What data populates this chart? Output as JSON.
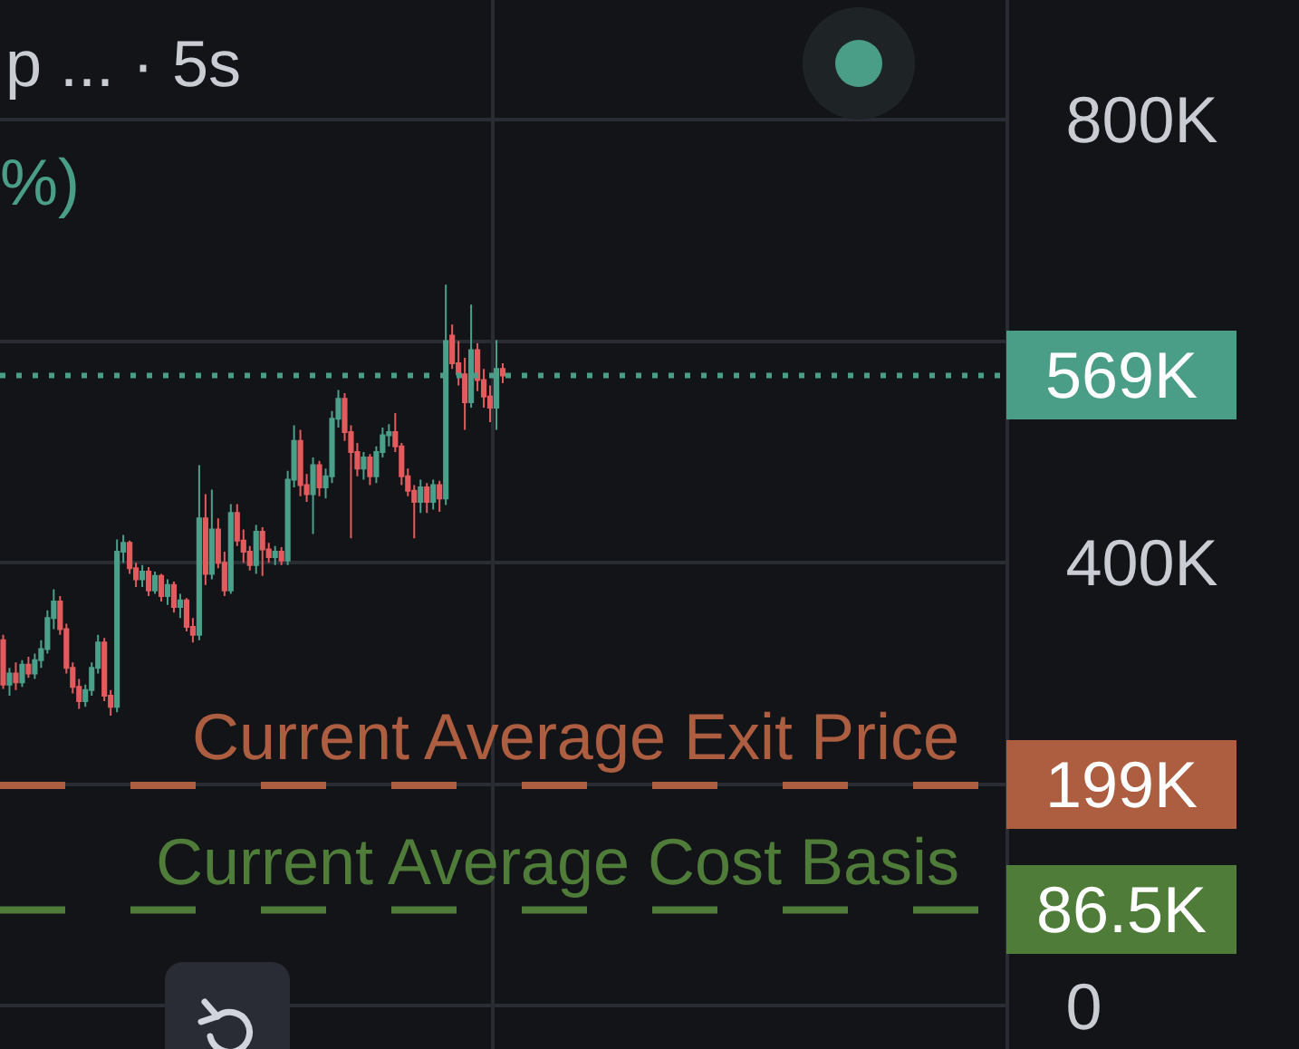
{
  "chart_data": {
    "type": "candlestick",
    "title": "p ... · 5s",
    "subtitle": "%)",
    "categories": [
      null,
      null,
      null,
      null,
      null,
      null,
      null,
      null,
      null,
      null,
      null,
      null,
      null,
      null,
      null,
      null,
      null,
      null,
      null,
      null,
      null,
      null,
      null,
      null,
      null,
      null,
      null,
      null,
      null,
      null,
      null,
      null,
      null,
      null,
      null,
      null,
      null,
      null,
      null,
      null,
      null,
      null,
      null,
      null,
      null,
      null,
      null,
      null,
      null,
      null,
      null,
      null,
      null,
      null,
      null,
      null,
      null,
      null,
      null,
      null,
      null,
      null,
      null,
      null,
      null,
      null,
      null,
      null,
      null,
      null,
      null,
      null,
      null,
      null,
      null,
      null,
      null,
      null,
      null,
      null,
      null,
      null,
      null,
      null,
      null,
      null,
      null,
      null,
      null,
      null,
      null,
      null,
      null,
      null,
      null,
      null,
      null,
      null,
      null,
      null,
      null,
      null,
      null,
      null,
      null,
      null,
      null,
      null,
      null,
      null,
      null,
      null,
      null,
      null,
      null,
      null,
      null,
      null,
      null,
      null,
      null,
      null,
      null,
      null,
      null,
      null,
      null,
      null,
      null,
      null,
      null,
      null,
      null,
      null,
      null,
      null,
      null,
      null,
      null,
      null,
      null,
      null,
      null,
      null,
      null,
      null,
      null,
      null,
      null,
      null,
      null,
      null,
      null,
      null,
      null,
      null,
      null,
      null,
      null
    ],
    "ohlc": [
      [
        330,
        335,
        286,
        290
      ],
      [
        290,
        305,
        280,
        300
      ],
      [
        300,
        310,
        285,
        292
      ],
      [
        292,
        312,
        288,
        308
      ],
      [
        308,
        315,
        296,
        300
      ],
      [
        300,
        318,
        295,
        312
      ],
      [
        312,
        330,
        305,
        322
      ],
      [
        322,
        357,
        318,
        350
      ],
      [
        350,
        376,
        340,
        365
      ],
      [
        365,
        370,
        335,
        340
      ],
      [
        340,
        345,
        300,
        305
      ],
      [
        305,
        310,
        282,
        288
      ],
      [
        288,
        295,
        268,
        275
      ],
      [
        275,
        290,
        270,
        285
      ],
      [
        285,
        310,
        280,
        305
      ],
      [
        305,
        335,
        300,
        328
      ],
      [
        328,
        332,
        275,
        280
      ],
      [
        280,
        285,
        262,
        270
      ],
      [
        270,
        421,
        265,
        410
      ],
      [
        410,
        425,
        400,
        418
      ],
      [
        418,
        420,
        390,
        395
      ],
      [
        395,
        400,
        378,
        385
      ],
      [
        385,
        398,
        378,
        392
      ],
      [
        392,
        396,
        370,
        375
      ],
      [
        375,
        392,
        372,
        388
      ],
      [
        388,
        390,
        365,
        370
      ],
      [
        370,
        385,
        362,
        380
      ],
      [
        380,
        383,
        355,
        360
      ],
      [
        360,
        372,
        350,
        366
      ],
      [
        366,
        368,
        338,
        342
      ],
      [
        342,
        350,
        328,
        335
      ],
      [
        335,
        488,
        330,
        440
      ],
      [
        440,
        462,
        380,
        390
      ],
      [
        390,
        466,
        385,
        430
      ],
      [
        430,
        440,
        395,
        400
      ],
      [
        400,
        410,
        370,
        375
      ],
      [
        375,
        453,
        372,
        445
      ],
      [
        445,
        453,
        415,
        420
      ],
      [
        420,
        430,
        400,
        410
      ],
      [
        410,
        415,
        393,
        398
      ],
      [
        398,
        434,
        390,
        428
      ],
      [
        428,
        432,
        388,
        412
      ],
      [
        412,
        418,
        400,
        405
      ],
      [
        405,
        415,
        398,
        410
      ],
      [
        410,
        414,
        398,
        402
      ],
      [
        402,
        483,
        398,
        475
      ],
      [
        475,
        524,
        468,
        510
      ],
      [
        510,
        520,
        460,
        470
      ],
      [
        470,
        480,
        455,
        462
      ],
      [
        462,
        495,
        426,
        488
      ],
      [
        488,
        492,
        460,
        468
      ],
      [
        468,
        485,
        458,
        478
      ],
      [
        478,
        537,
        472,
        530
      ],
      [
        530,
        556,
        522,
        548
      ],
      [
        548,
        553,
        510,
        518
      ],
      [
        518,
        524,
        422,
        500
      ],
      [
        500,
        508,
        478,
        485
      ],
      [
        485,
        500,
        475,
        495
      ],
      [
        495,
        498,
        470,
        478
      ],
      [
        478,
        505,
        472,
        500
      ],
      [
        500,
        522,
        495,
        515
      ],
      [
        515,
        525,
        505,
        518
      ],
      [
        518,
        535,
        500,
        505
      ],
      [
        505,
        508,
        470,
        478
      ],
      [
        478,
        485,
        460,
        465
      ],
      [
        465,
        470,
        422,
        455
      ],
      [
        455,
        475,
        445,
        468
      ],
      [
        468,
        472,
        445,
        455
      ],
      [
        455,
        475,
        448,
        470
      ],
      [
        470,
        474,
        446,
        458
      ],
      [
        458,
        651,
        452,
        600
      ],
      [
        605,
        615,
        575,
        580
      ],
      [
        580,
        600,
        560,
        570
      ],
      [
        570,
        585,
        520,
        545
      ],
      [
        545,
        633,
        540,
        592
      ],
      [
        592,
        598,
        555,
        565
      ],
      [
        565,
        575,
        540,
        550
      ],
      [
        550,
        560,
        527,
        540
      ],
      [
        540,
        601,
        520,
        575
      ],
      [
        575,
        580,
        562,
        569
      ],
      null,
      null,
      null,
      null,
      null,
      null,
      null,
      null,
      null,
      null,
      null,
      null,
      null,
      null,
      null,
      null,
      null,
      null,
      null,
      null,
      null,
      null,
      null,
      null,
      null,
      null,
      null,
      null,
      null,
      null,
      null,
      null,
      null,
      null,
      null,
      null,
      null,
      null,
      null,
      null,
      null,
      null,
      null,
      null,
      null,
      null,
      null,
      null,
      null,
      null,
      null,
      null,
      null,
      null,
      null,
      null,
      null,
      null,
      null,
      null,
      null,
      null,
      null,
      null,
      null,
      null,
      null,
      null,
      null,
      null,
      null,
      null,
      null,
      null,
      null,
      null,
      null,
      null,
      null
    ],
    "colors": [
      "#e25b5e",
      "#4aa08a",
      "#e25b5e",
      "#4aa08a",
      "#e25b5e",
      "#4aa08a",
      "#4aa08a",
      "#4aa08a",
      "#4aa08a",
      "#e25b5e",
      "#e25b5e",
      "#e25b5e",
      "#e25b5e",
      "#4aa08a",
      "#4aa08a",
      "#4aa08a",
      "#e25b5e",
      "#e25b5e",
      "#4aa08a",
      "#4aa08a",
      "#e25b5e",
      "#e25b5e",
      "#4aa08a",
      "#e25b5e",
      "#4aa08a",
      "#e25b5e",
      "#4aa08a",
      "#e25b5e",
      "#4aa08a",
      "#e25b5e",
      "#e25b5e",
      "#4aa08a",
      "#e25b5e",
      "#4aa08a",
      "#e25b5e",
      "#e25b5e",
      "#4aa08a",
      "#e25b5e",
      "#e25b5e",
      "#e25b5e",
      "#4aa08a",
      "#e25b5e",
      "#e25b5e",
      "#4aa08a",
      "#e25b5e",
      "#4aa08a",
      "#4aa08a",
      "#e25b5e",
      "#e25b5e",
      "#4aa08a",
      "#e25b5e",
      "#4aa08a",
      "#4aa08a",
      "#4aa08a",
      "#e25b5e",
      "#e25b5e",
      "#e25b5e",
      "#4aa08a",
      "#e25b5e",
      "#4aa08a",
      "#4aa08a",
      "#4aa08a",
      "#e25b5e",
      "#e25b5e",
      "#e25b5e",
      "#e25b5e",
      "#4aa08a",
      "#e25b5e",
      "#4aa08a",
      "#e25b5e",
      "#4aa08a",
      "#e25b5e",
      "#e25b5e",
      "#e25b5e",
      "#4aa08a",
      "#e25b5e",
      "#e25b5e",
      "#e25b5e",
      "#4aa08a",
      "#e25b5e",
      null,
      null,
      null,
      null,
      null,
      null,
      null,
      null,
      null,
      null,
      null,
      null,
      null,
      null,
      null,
      null,
      null,
      null,
      null,
      null,
      null,
      null,
      null,
      null,
      null,
      null,
      null,
      null,
      null,
      null,
      null,
      null,
      null,
      null,
      null,
      null,
      null,
      null,
      null,
      null,
      null,
      null,
      null,
      null,
      null,
      null,
      null,
      null,
      null,
      null,
      null,
      null,
      null,
      null,
      null,
      null,
      null,
      null,
      null,
      null,
      null,
      null,
      null,
      null,
      null,
      null,
      null,
      null,
      null,
      null,
      null,
      null,
      null,
      null,
      null,
      null,
      null,
      null,
      null
    ],
    "ylim": [
      -39,
      908
    ],
    "yticks": [
      0,
      {
        "value": 200,
        "label": null
      },
      {
        "value": 400,
        "label": "400K"
      },
      {
        "value": 600,
        "label": null
      },
      {
        "value": 800,
        "label": "800K"
      }
    ],
    "grid": "y",
    "tick_labels": "y",
    "ref_lines": [
      {
        "axis": "y",
        "value": 569,
        "label": "569K",
        "color": "#4a9e87",
        "line_style": "dotted"
      },
      {
        "axis": "y",
        "value": 199,
        "label": "199K",
        "color": "#ad5d40",
        "line_style": "dashed"
      },
      {
        "axis": "y",
        "value": 86.5,
        "label": "86.5K",
        "color": "#4f7d39",
        "line_style": "dashed"
      }
    ],
    "annotations": [
      {
        "text": "Current Average Exit Price",
        "y": 199
      },
      {
        "text": "Current Average Cost Basis",
        "y": 86.5
      }
    ]
  }
}
